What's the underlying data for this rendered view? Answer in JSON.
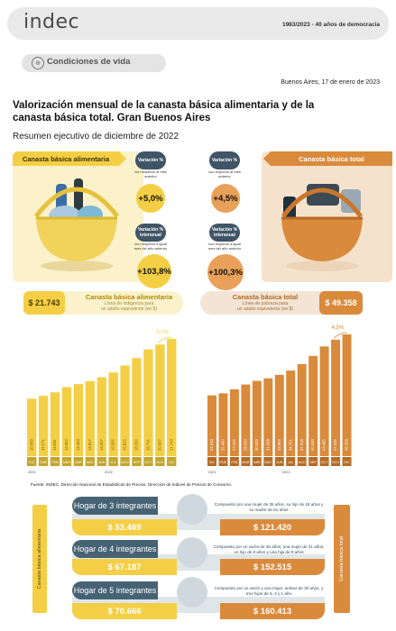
{
  "header": {
    "logo": "indec",
    "tagline": "1983/2023 - 40 años de democracia"
  },
  "section": {
    "label": "Condiciones de vida",
    "icon": "globe-icon"
  },
  "dateline": "Buenos Aires, 17 de enero de 2023",
  "title": "Valorización mensual de la canasta básica alimentaria y de la canasta básica total. Gran Buenos Aires",
  "subtitle": "Resumen ejecutivo de diciembre de 2022",
  "cba": {
    "heading": "Canasta básica alimentaria",
    "value": "$ 21.743",
    "pill_title": "Canasta básica alimentaria",
    "pill_sub1": "Línea de indigencia para",
    "pill_sub2": "un adulto equivalente (en $)",
    "var_m_label": "Variación %",
    "var_m_sub": "con respecto al mes anterior",
    "var_m": "+5,0%",
    "var_i_label": "Variación % interanual",
    "var_i_sub": "con respecto a igual mes del año anterior",
    "var_i": "+103,8%"
  },
  "cbt": {
    "heading": "Canasta básica total",
    "value": "$ 49.358",
    "pill_title": "Canasta básica total",
    "pill_sub1": "Línea de pobreza para",
    "pill_sub2": "un adulto equivalente (en $)",
    "var_m_label": "Variación %",
    "var_m_sub": "con respecto al mes anterior",
    "var_m": "+4,5%",
    "var_i_label": "Variación % interanual",
    "var_i_sub": "con respecto a igual mes del año anterior",
    "var_i": "+100,3%"
  },
  "chart_data": [
    {
      "type": "bar",
      "name_hint": "Canasta básica alimentaria",
      "categories": [
        "DIC",
        "ENE",
        "FEB",
        "MAR",
        "ABR",
        "MAY",
        "JUN",
        "JUL",
        "AGO",
        "SEP",
        "OCT",
        "NOV",
        "DIC"
      ],
      "year_labels": [
        "2021",
        "2022"
      ],
      "values": [
        10669,
        11171,
        11826,
        12802,
        13353,
        13917,
        14637,
        15505,
        16815,
        18200,
        19791,
        20697,
        21743
      ],
      "value_labels": [
        "10.669",
        "11.171",
        "11.826",
        "12.802",
        "13.353",
        "13.917",
        "14.637",
        "15.505",
        "16.815",
        "18.200",
        "19.791",
        "20.697",
        "21.743"
      ],
      "annotation": "5,0%",
      "color": "#f4cf45"
    },
    {
      "type": "bar",
      "name_hint": "Canasta básica total",
      "categories": [
        "DIC",
        "ENE",
        "FEB",
        "MAR",
        "ABR",
        "MAY",
        "JUN",
        "JUL",
        "AGO",
        "SEP",
        "OCT",
        "NOV",
        "DIC"
      ],
      "year_labels": [
        "2021",
        "2022"
      ],
      "values": [
        24643,
        25460,
        27122,
        29033,
        30523,
        31558,
        32953,
        34701,
        37318,
        40630,
        44485,
        47235,
        49358
      ],
      "value_labels": [
        "24.643",
        "25.460",
        "27.122",
        "29.033",
        "30.523",
        "31.558",
        "32.953",
        "34.701",
        "37.318",
        "40.630",
        "44.485",
        "47.235",
        "49.358"
      ],
      "annotation": "4,5%",
      "color": "#d98a3b"
    }
  ],
  "source": "Fuente: INDEC, Dirección Nacional de Estadísticas de Precios. Dirección de Índices de Precios de Consumo.",
  "side_left": "Canasta básica alimentaria",
  "side_right": "Canasta básica total",
  "households": [
    {
      "label": "Hogar de 3 integrantes",
      "cba": "$ 53.489",
      "cbt": "$ 121.420",
      "desc": "Compuesto por una mujer de 35 años, su hijo de 18 años y su madre de 61 años"
    },
    {
      "label": "Hogar de 4 integrantes",
      "cba": "$ 67.187",
      "cbt": "$ 152.515",
      "desc": "Compuesto por un varón de 35 años, una mujer de 31 años, un hijo de 6 años y una hija de 8 años"
    },
    {
      "label": "Hogar de 5 integrantes",
      "cba": "$ 70.666",
      "cbt": "$ 160.413",
      "desc": "Compuesto por un varón y una mujer, ambos de 30 años, y tres hijos de 5, 3 y 1 año"
    }
  ],
  "colors": {
    "yellow": "#f4cf45",
    "orange": "#d98a3b",
    "slate": "#466374"
  }
}
